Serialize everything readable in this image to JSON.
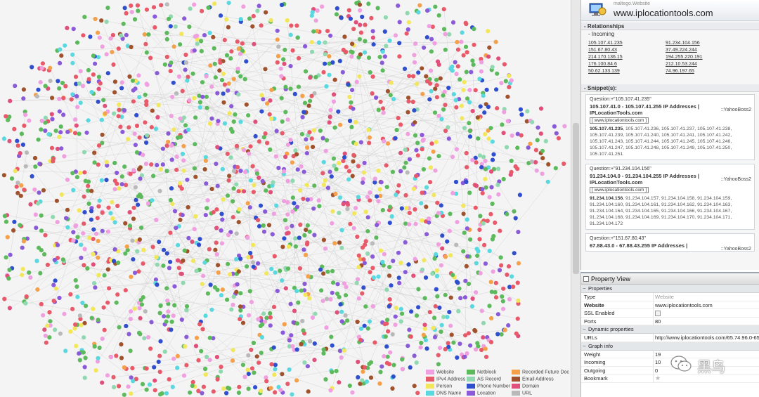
{
  "graph": {
    "legend": [
      {
        "label": "Website",
        "color": "#f0a0e0"
      },
      {
        "label": "Netblock",
        "color": "#5cba5c"
      },
      {
        "label": "Recorded Future Doc",
        "color": "#f5a04a"
      },
      {
        "label": "IPv4 Address",
        "color": "#e85a6a"
      },
      {
        "label": "AS Record",
        "color": "#8fd8b0"
      },
      {
        "label": "Email Address",
        "color": "#a0522d"
      },
      {
        "label": "Person",
        "color": "#f2e75a"
      },
      {
        "label": "Phone Number",
        "color": "#2f4fcf"
      },
      {
        "label": "Domain",
        "color": "#e0507a"
      },
      {
        "label": "DNS Name",
        "color": "#5ad8e0"
      },
      {
        "label": "Location",
        "color": "#8a5ad8"
      },
      {
        "label": "URL",
        "color": "#b9b9b9"
      }
    ]
  },
  "detail": {
    "kind": "maltego.Website",
    "title": "www.iplocationtools.com",
    "relationships_heading": "Relationships",
    "incoming_heading": "Incoming",
    "incoming": [
      "105.107.41.235",
      "91.234.104.156",
      "151.67.80.43",
      "37.49.224.244",
      "214.170.136.15",
      "194.255.220.191",
      "176.100.84.6",
      "212.10.53.244",
      "50.62.133.139",
      "74.96.197.65"
    ],
    "snippets_heading": "Snippet(s):",
    "snippets": [
      {
        "question": "Question:+\"105.107.41.235\"",
        "title": "105.107.41.0 - 105.107.41.255 IP Addresses | IPLocationTools.com",
        "source": "::YahooBoss2",
        "url": "[ www.iplocationtools.com ]",
        "bold": "105.107.41.235",
        "body": ", 105.107.41.236, 105.107.41.237, 105.107.41.238, 105.107.41.239, 105.107.41.240, 105.107.41.241, 105.107.41.242, 105.107.41.243, 105.107.41.244, 105.107.41.245, 105.107.41.246, 105.107.41.247, 105.107.41.248, 105.107.41.249, 105.107.41.250, 105.107.41.251"
      },
      {
        "question": "Question:+\"91.234.104.156\"",
        "title": "91.234.104.0 - 91.234.104.255 IP Addresses | IPLocationTools.com",
        "source": "::YahooBoss2",
        "url": "[ www.iplocationtools.com ]",
        "bold": "91.234.104.156",
        "body": ", 91.234.104.157, 91.234.104.158, 91.234.104.159, 91.234.104.160, 91.234.104.161, 91.234.104.162, 91.234.104.163, 91.234.104.164, 91.234.104.165, 91.234.104.166, 91.234.104.167, 91.234.104.168, 91.234.104.169, 91.234.104.170, 91.234.104.171, 91.234.104.172"
      },
      {
        "question": "Question:+\"151.67.80.43\"",
        "title": "67.88.43.0 - 67.88.43.255 IP Addresses |",
        "source": "::YahooBoss2"
      }
    ]
  },
  "props": {
    "title": "Property View",
    "properties_heading": "Properties",
    "type_label": "Type",
    "type_value": "Website",
    "website_label": "Website",
    "website_value": "www.iplocationtools.com",
    "ssl_label": "SSL Enabled",
    "ports_label": "Ports",
    "ports_value": "80",
    "dynamic_heading": "Dynamic properties",
    "urls_label": "URLs",
    "urls_value": "http://www.iplocationtools.com/65.74.96.0-65",
    "graph_info_heading": "Graph info",
    "weight_label": "Weight",
    "weight_value": "19",
    "incoming_label": "Incoming",
    "incoming_value": "10",
    "outgoing_label": "Outgoing",
    "outgoing_value": "0",
    "bookmark_label": "Bookmark"
  },
  "watermark": {
    "text": "黑鸟"
  }
}
